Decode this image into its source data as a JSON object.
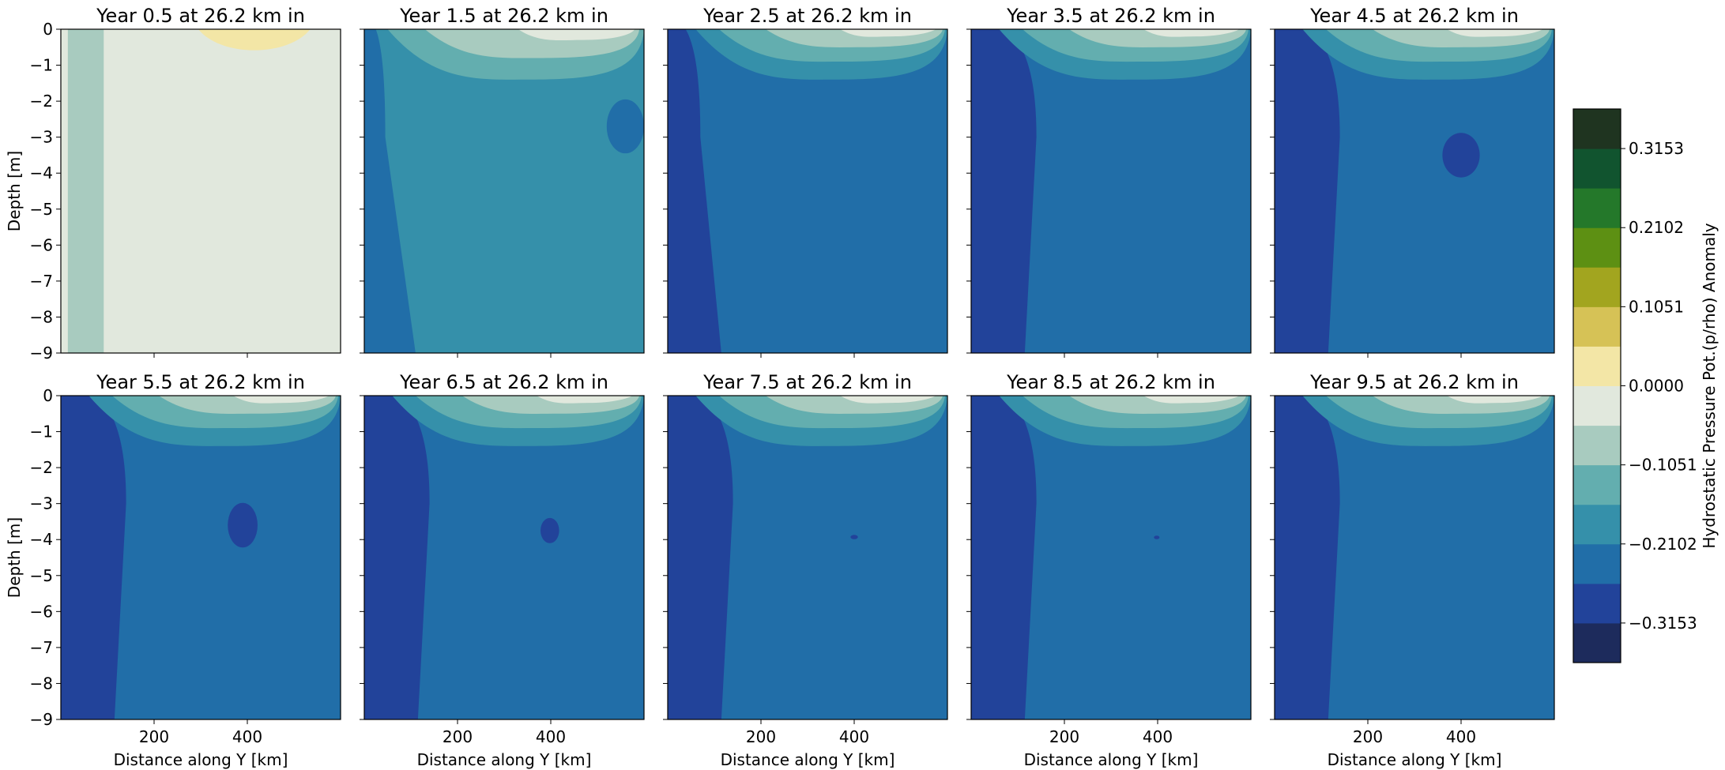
{
  "figure": {
    "colorbar_label": "Hydrostatic Pressure Pot.(p/rho) Anomaly",
    "xlabel": "Distance along Y [km]",
    "ylabel": "Depth [m]"
  },
  "colorbar": {
    "levels": [
      -0.3679,
      -0.3153,
      -0.2628,
      -0.2102,
      -0.1577,
      -0.1051,
      -0.0526,
      0.0,
      0.0526,
      0.1051,
      0.1577,
      0.2102,
      0.2628,
      0.3153,
      0.3679
    ],
    "colors": [
      "#1d2b5c",
      "#22439a",
      "#216ea8",
      "#3590aa",
      "#63aeaf",
      "#a8cbbf",
      "#e1e8dd",
      "#f3e6a6",
      "#d6c256",
      "#a2a51f",
      "#5d9013",
      "#24782a",
      "#11542f",
      "#1f3420"
    ],
    "tick_labels": [
      "−0.3153",
      "−0.2102",
      "−0.1051",
      "0.0000",
      "0.1051",
      "0.2102",
      "0.3153"
    ],
    "tick_values": [
      -0.3153,
      -0.2102,
      -0.1051,
      0.0,
      0.1051,
      0.2102,
      0.3153
    ]
  },
  "chart_data": [
    {
      "type": "contourf",
      "title": "Year 0.5 at 26.2 km in",
      "xlabel": "",
      "ylabel": "Depth [m]",
      "xlim": [
        0,
        600
      ],
      "ylim": [
        -9,
        0
      ],
      "xticks": [],
      "yticks": [
        "0",
        "−1",
        "−2",
        "−3",
        "−4",
        "−5",
        "−6",
        "−7",
        "−8",
        "−9"
      ],
      "regions": [
        {
          "color": "#e1e8dd",
          "level": "0.0000",
          "shape": "rect",
          "x": [
            0,
            600
          ],
          "y": [
            -9,
            0
          ]
        },
        {
          "color": "#a8cbbf",
          "level": "−0.1051",
          "shape": "rect",
          "x": [
            15,
            92
          ],
          "y": [
            -9,
            0
          ]
        },
        {
          "color": "#f3e6a6",
          "level": "0.0526",
          "shape": "surface_bump",
          "x": [
            295,
            535
          ],
          "depth": 0.78
        }
      ]
    },
    {
      "type": "contourf",
      "title": "Year 1.5 at 26.2 km in",
      "xlabel": "",
      "ylabel": "",
      "xlim": [
        0,
        600
      ],
      "ylim": [
        -9,
        0
      ],
      "xticks": [],
      "yticks": [],
      "regions": [
        {
          "color": "#3590aa",
          "level": "−0.2102",
          "shape": "rect",
          "x": [
            0,
            600
          ],
          "y": [
            -9,
            0
          ]
        },
        {
          "color": "#216ea8",
          "level": "−0.2628",
          "shape": "west_band",
          "x_top": 45,
          "x_bottom": 110,
          "depth": 9
        },
        {
          "color": "#63aeaf",
          "level": "−0.1577",
          "shape": "surface_wedge",
          "x": [
            50,
            600
          ],
          "depth": 1.4
        },
        {
          "color": "#a8cbbf",
          "level": "−0.1051",
          "shape": "surface_wedge",
          "x": [
            130,
            590
          ],
          "depth": 0.8
        },
        {
          "color": "#e1e8dd",
          "level": "0.0000",
          "shape": "surface_wedge",
          "x": [
            330,
            580
          ],
          "depth": 0.3
        },
        {
          "color": "#216ea8",
          "level": "−0.2628",
          "shape": "blob",
          "cx": 560,
          "cy": -2.7,
          "rx": 40,
          "ry": 0.75
        }
      ]
    },
    {
      "type": "contourf",
      "title": "Year 2.5 at 26.2 km in",
      "xlabel": "",
      "ylabel": "",
      "xlim": [
        0,
        600
      ],
      "ylim": [
        -9,
        0
      ],
      "xticks": [],
      "yticks": [],
      "regions": [
        {
          "color": "#216ea8",
          "level": "−0.2628",
          "shape": "rect",
          "x": [
            0,
            600
          ],
          "y": [
            -9,
            0
          ]
        },
        {
          "color": "#22439a",
          "level": "−0.3153",
          "shape": "west_band",
          "x_top": 70,
          "x_bottom": 115,
          "depth": 9
        },
        {
          "color": "#3590aa",
          "level": "−0.2102",
          "shape": "surface_wedge",
          "x": [
            60,
            600
          ],
          "depth": 1.4
        },
        {
          "color": "#63aeaf",
          "level": "−0.1577",
          "shape": "surface_wedge",
          "x": [
            110,
            595
          ],
          "depth": 0.9
        },
        {
          "color": "#a8cbbf",
          "level": "−0.1051",
          "shape": "surface_wedge",
          "x": [
            210,
            590
          ],
          "depth": 0.5
        },
        {
          "color": "#e1e8dd",
          "level": "0.0000",
          "shape": "surface_wedge",
          "x": [
            370,
            575
          ],
          "depth": 0.2
        }
      ]
    },
    {
      "type": "contourf",
      "title": "Year 3.5 at 26.2 km in",
      "xlabel": "",
      "ylabel": "",
      "xlim": [
        0,
        600
      ],
      "ylim": [
        -9,
        0
      ],
      "xticks": [],
      "yticks": [],
      "regions": [
        {
          "color": "#216ea8",
          "level": "−0.2628",
          "shape": "rect",
          "x": [
            0,
            600
          ],
          "y": [
            -9,
            0
          ]
        },
        {
          "color": "#22439a",
          "level": "−0.3153",
          "shape": "west_band",
          "x_top": 140,
          "x_bottom": 115,
          "depth": 9
        },
        {
          "color": "#3590aa",
          "level": "−0.2102",
          "shape": "surface_wedge",
          "x": [
            60,
            600
          ],
          "depth": 1.4
        },
        {
          "color": "#63aeaf",
          "level": "−0.1577",
          "shape": "surface_wedge",
          "x": [
            110,
            595
          ],
          "depth": 0.9
        },
        {
          "color": "#a8cbbf",
          "level": "−0.1051",
          "shape": "surface_wedge",
          "x": [
            210,
            590
          ],
          "depth": 0.5
        },
        {
          "color": "#e1e8dd",
          "level": "0.0000",
          "shape": "surface_wedge",
          "x": [
            370,
            575
          ],
          "depth": 0.2
        }
      ]
    },
    {
      "type": "contourf",
      "title": "Year 4.5 at 26.2 km in",
      "xlabel": "",
      "ylabel": "",
      "xlim": [
        0,
        600
      ],
      "ylim": [
        -9,
        0
      ],
      "xticks": [],
      "yticks": [],
      "regions": [
        {
          "color": "#216ea8",
          "level": "−0.2628",
          "shape": "rect",
          "x": [
            0,
            600
          ],
          "y": [
            -9,
            0
          ]
        },
        {
          "color": "#22439a",
          "level": "−0.3153",
          "shape": "west_band",
          "x_top": 140,
          "x_bottom": 115,
          "depth": 9
        },
        {
          "color": "#3590aa",
          "level": "−0.2102",
          "shape": "surface_wedge",
          "x": [
            60,
            600
          ],
          "depth": 1.4
        },
        {
          "color": "#63aeaf",
          "level": "−0.1577",
          "shape": "surface_wedge",
          "x": [
            110,
            595
          ],
          "depth": 0.9
        },
        {
          "color": "#a8cbbf",
          "level": "−0.1051",
          "shape": "surface_wedge",
          "x": [
            210,
            590
          ],
          "depth": 0.5
        },
        {
          "color": "#e1e8dd",
          "level": "0.0000",
          "shape": "surface_wedge",
          "x": [
            370,
            575
          ],
          "depth": 0.2
        },
        {
          "color": "#22439a",
          "level": "−0.3153",
          "shape": "blob",
          "cx": 400,
          "cy": -3.5,
          "rx": 40,
          "ry": 0.62
        }
      ]
    },
    {
      "type": "contourf",
      "title": "Year 5.5 at 26.2 km in",
      "xlabel": "Distance along Y [km]",
      "ylabel": "Depth [m]",
      "xlim": [
        0,
        600
      ],
      "ylim": [
        -9,
        0
      ],
      "xticks": [
        "200",
        "400"
      ],
      "xtick_values": [
        200,
        400
      ],
      "yticks": [
        "0",
        "−1",
        "−2",
        "−3",
        "−4",
        "−5",
        "−6",
        "−7",
        "−8",
        "−9"
      ],
      "regions": [
        {
          "color": "#216ea8",
          "level": "−0.2628",
          "shape": "rect",
          "x": [
            0,
            600
          ],
          "y": [
            -9,
            0
          ]
        },
        {
          "color": "#22439a",
          "level": "−0.3153",
          "shape": "west_band",
          "x_top": 140,
          "x_bottom": 115,
          "depth": 9
        },
        {
          "color": "#3590aa",
          "level": "−0.2102",
          "shape": "surface_wedge",
          "x": [
            60,
            600
          ],
          "depth": 1.4
        },
        {
          "color": "#63aeaf",
          "level": "−0.1577",
          "shape": "surface_wedge",
          "x": [
            110,
            595
          ],
          "depth": 0.9
        },
        {
          "color": "#a8cbbf",
          "level": "−0.1051",
          "shape": "surface_wedge",
          "x": [
            210,
            590
          ],
          "depth": 0.5
        },
        {
          "color": "#e1e8dd",
          "level": "0.0000",
          "shape": "surface_wedge",
          "x": [
            370,
            575
          ],
          "depth": 0.2
        },
        {
          "color": "#22439a",
          "level": "−0.3153",
          "shape": "blob",
          "cx": 390,
          "cy": -3.6,
          "rx": 32,
          "ry": 0.62
        }
      ]
    },
    {
      "type": "contourf",
      "title": "Year 6.5 at 26.2 km in",
      "xlabel": "Distance along Y [km]",
      "ylabel": "",
      "xlim": [
        0,
        600
      ],
      "ylim": [
        -9,
        0
      ],
      "xticks": [
        "200",
        "400"
      ],
      "xtick_values": [
        200,
        400
      ],
      "yticks": [],
      "regions": [
        {
          "color": "#216ea8",
          "level": "−0.2628",
          "shape": "rect",
          "x": [
            0,
            600
          ],
          "y": [
            -9,
            0
          ]
        },
        {
          "color": "#22439a",
          "level": "−0.3153",
          "shape": "west_band",
          "x_top": 140,
          "x_bottom": 115,
          "depth": 9
        },
        {
          "color": "#3590aa",
          "level": "−0.2102",
          "shape": "surface_wedge",
          "x": [
            60,
            600
          ],
          "depth": 1.4
        },
        {
          "color": "#63aeaf",
          "level": "−0.1577",
          "shape": "surface_wedge",
          "x": [
            110,
            595
          ],
          "depth": 0.9
        },
        {
          "color": "#a8cbbf",
          "level": "−0.1051",
          "shape": "surface_wedge",
          "x": [
            210,
            590
          ],
          "depth": 0.5
        },
        {
          "color": "#e1e8dd",
          "level": "0.0000",
          "shape": "surface_wedge",
          "x": [
            370,
            575
          ],
          "depth": 0.2
        },
        {
          "color": "#22439a",
          "level": "−0.3153",
          "shape": "blob",
          "cx": 398,
          "cy": -3.75,
          "rx": 20,
          "ry": 0.35
        }
      ]
    },
    {
      "type": "contourf",
      "title": "Year 7.5 at 26.2 km in",
      "xlabel": "Distance along Y [km]",
      "ylabel": "",
      "xlim": [
        0,
        600
      ],
      "ylim": [
        -9,
        0
      ],
      "xticks": [
        "200",
        "400"
      ],
      "xtick_values": [
        200,
        400
      ],
      "yticks": [],
      "regions": [
        {
          "color": "#216ea8",
          "level": "−0.2628",
          "shape": "rect",
          "x": [
            0,
            600
          ],
          "y": [
            -9,
            0
          ]
        },
        {
          "color": "#22439a",
          "level": "−0.3153",
          "shape": "west_band",
          "x_top": 140,
          "x_bottom": 115,
          "depth": 9
        },
        {
          "color": "#3590aa",
          "level": "−0.2102",
          "shape": "surface_wedge",
          "x": [
            60,
            600
          ],
          "depth": 1.4
        },
        {
          "color": "#63aeaf",
          "level": "−0.1577",
          "shape": "surface_wedge",
          "x": [
            110,
            595
          ],
          "depth": 0.9
        },
        {
          "color": "#a8cbbf",
          "level": "−0.1051",
          "shape": "surface_wedge",
          "x": [
            210,
            590
          ],
          "depth": 0.5
        },
        {
          "color": "#e1e8dd",
          "level": "0.0000",
          "shape": "surface_wedge",
          "x": [
            370,
            575
          ],
          "depth": 0.2
        },
        {
          "color": "#22439a",
          "level": "−0.3153",
          "shape": "blob",
          "cx": 400,
          "cy": -3.93,
          "rx": 8,
          "ry": 0.06
        }
      ]
    },
    {
      "type": "contourf",
      "title": "Year 8.5 at 26.2 km in",
      "xlabel": "Distance along Y [km]",
      "ylabel": "",
      "xlim": [
        0,
        600
      ],
      "ylim": [
        -9,
        0
      ],
      "xticks": [
        "200",
        "400"
      ],
      "xtick_values": [
        200,
        400
      ],
      "yticks": [],
      "regions": [
        {
          "color": "#216ea8",
          "level": "−0.2628",
          "shape": "rect",
          "x": [
            0,
            600
          ],
          "y": [
            -9,
            0
          ]
        },
        {
          "color": "#22439a",
          "level": "−0.3153",
          "shape": "west_band",
          "x_top": 140,
          "x_bottom": 115,
          "depth": 9
        },
        {
          "color": "#3590aa",
          "level": "−0.2102",
          "shape": "surface_wedge",
          "x": [
            60,
            600
          ],
          "depth": 1.4
        },
        {
          "color": "#63aeaf",
          "level": "−0.1577",
          "shape": "surface_wedge",
          "x": [
            110,
            595
          ],
          "depth": 0.9
        },
        {
          "color": "#a8cbbf",
          "level": "−0.1051",
          "shape": "surface_wedge",
          "x": [
            210,
            590
          ],
          "depth": 0.5
        },
        {
          "color": "#e1e8dd",
          "level": "0.0000",
          "shape": "surface_wedge",
          "x": [
            370,
            575
          ],
          "depth": 0.2
        },
        {
          "color": "#22439a",
          "level": "−0.3153",
          "shape": "blob",
          "cx": 398,
          "cy": -3.94,
          "rx": 6,
          "ry": 0.05
        }
      ]
    },
    {
      "type": "contourf",
      "title": "Year 9.5 at 26.2 km in",
      "xlabel": "Distance along Y [km]",
      "ylabel": "",
      "xlim": [
        0,
        600
      ],
      "ylim": [
        -9,
        0
      ],
      "xticks": [
        "200",
        "400"
      ],
      "xtick_values": [
        200,
        400
      ],
      "yticks": [],
      "regions": [
        {
          "color": "#216ea8",
          "level": "−0.2628",
          "shape": "rect",
          "x": [
            0,
            600
          ],
          "y": [
            -9,
            0
          ]
        },
        {
          "color": "#22439a",
          "level": "−0.3153",
          "shape": "west_band",
          "x_top": 140,
          "x_bottom": 115,
          "depth": 9
        },
        {
          "color": "#3590aa",
          "level": "−0.2102",
          "shape": "surface_wedge",
          "x": [
            60,
            600
          ],
          "depth": 1.4
        },
        {
          "color": "#63aeaf",
          "level": "−0.1577",
          "shape": "surface_wedge",
          "x": [
            110,
            595
          ],
          "depth": 0.9
        },
        {
          "color": "#a8cbbf",
          "level": "−0.1051",
          "shape": "surface_wedge",
          "x": [
            210,
            590
          ],
          "depth": 0.5
        },
        {
          "color": "#e1e8dd",
          "level": "0.0000",
          "shape": "surface_wedge",
          "x": [
            370,
            575
          ],
          "depth": 0.2
        }
      ]
    }
  ]
}
